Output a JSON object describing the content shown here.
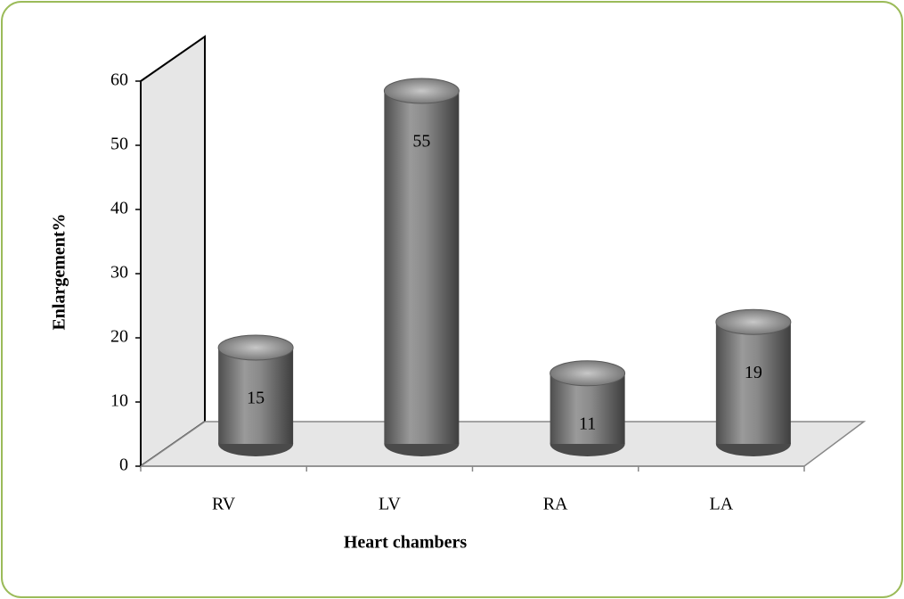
{
  "chart_data": {
    "type": "bar3d",
    "x_label": "Heart chambers",
    "y_label": "Enlargement%",
    "categories": [
      "RV",
      "LV",
      "RA",
      "LA"
    ],
    "values": [
      15,
      55,
      11,
      19
    ],
    "color": "#6e6e6e",
    "ylim": [
      0,
      60
    ],
    "yticks": [
      0,
      10,
      20,
      30,
      40,
      50,
      60
    ]
  }
}
